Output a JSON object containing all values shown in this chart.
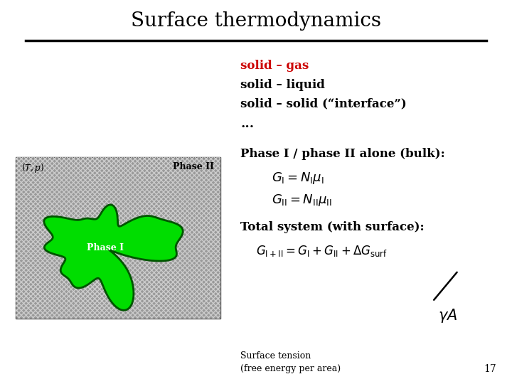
{
  "title": "Surface thermodynamics",
  "bg_color": "#ffffff",
  "title_color": "#000000",
  "title_fontsize": 20,
  "solid_gas_text": "solid – gas",
  "solid_gas_color": "#cc0000",
  "solid_liquid_text": "solid – liquid",
  "solid_solid_text": "solid – solid (“interface”)",
  "ellipsis_text": "...",
  "phase_bulk_title": "Phase I / phase II alone (bulk):",
  "eq1": "$G_{\\mathrm{I}} = N_{\\mathrm{I}} \\mu_{\\mathrm{I}}$",
  "eq2": "$G_{\\mathrm{II}} = N_{\\mathrm{II}} \\mu_{\\mathrm{II}}$",
  "total_title": "Total system (with surface):",
  "eq3": "$G_{\\mathrm{I+II}} = G_{\\mathrm{I}} + G_{\\mathrm{II}} + \\Delta G_{\\mathrm{surf}}$",
  "gamma_label": "$\\gamma A$",
  "surface_tension_line1": "Surface tension",
  "surface_tension_line2": "(free energy per area)",
  "page_number": "17",
  "box_color": "#999999",
  "green_color": "#00dd00",
  "phase1_label": "Phase I",
  "phase2_label": "Phase II",
  "tp_label": "$(T,p)$"
}
